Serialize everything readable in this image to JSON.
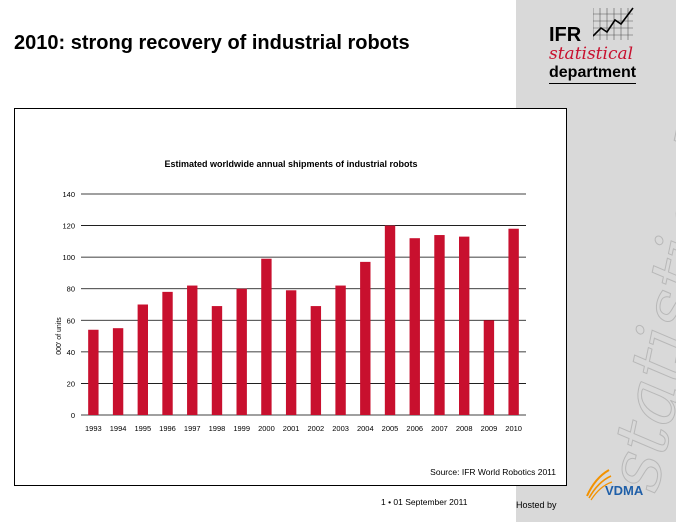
{
  "slide": {
    "title": "2010: strong recovery of industrial robots",
    "footer_page": "1 • 01 September 2011",
    "hosted_by": "Hosted by",
    "source": "Source: IFR World Robotics 2011",
    "watermark": "statistical"
  },
  "logo": {
    "ifr": "IFR",
    "statistical": "statistical",
    "department": "department",
    "vdma": "VDMA"
  },
  "colors": {
    "bar": "#c8102e",
    "panel": "#d9d9d9",
    "vdma_blue": "#1f5fa8",
    "vdma_orange": "#f39200"
  },
  "chart_data": {
    "type": "bar",
    "title": "Estimated worldwide annual shipments of industrial robots",
    "xlabel": "",
    "ylabel": "000' of units",
    "ylim": [
      0,
      140
    ],
    "yticks": [
      0,
      20,
      40,
      60,
      80,
      100,
      120,
      140
    ],
    "categories": [
      "1993",
      "1994",
      "1995",
      "1996",
      "1997",
      "1998",
      "1999",
      "2000",
      "2001",
      "2002",
      "2003",
      "2004",
      "2005",
      "2006",
      "2007",
      "2008",
      "2009",
      "2010"
    ],
    "values": [
      54,
      55,
      70,
      78,
      82,
      69,
      80,
      99,
      79,
      69,
      82,
      97,
      120,
      112,
      114,
      113,
      60,
      118
    ],
    "grid": true,
    "legend": "none"
  }
}
